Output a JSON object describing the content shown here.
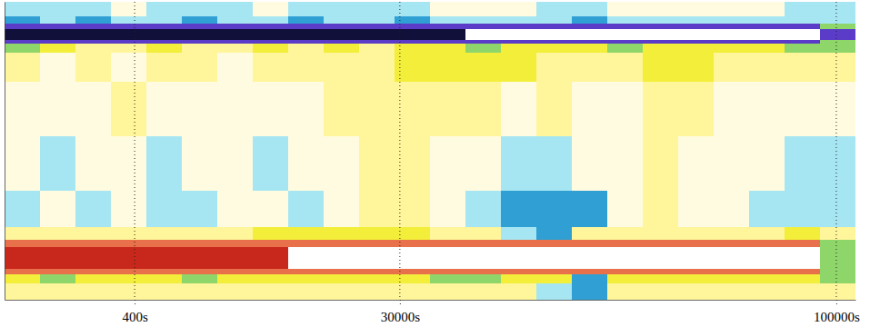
{
  "chart_data": {
    "type": "heatmap",
    "x_bins": [
      0,
      1,
      2,
      3,
      4,
      5,
      6,
      7,
      8,
      9,
      10,
      11,
      12,
      13,
      14,
      15,
      16,
      17,
      18,
      19,
      20,
      21,
      22,
      23,
      24
    ],
    "y_bins": [
      0,
      2.25,
      3.5,
      4.25,
      7.25,
      8.25,
      10,
      15,
      22.5,
      30,
      34,
      35.25,
      35.75,
      37.25,
      38,
      39,
      41
    ],
    "xlim": [
      0,
      24
    ],
    "ylim": [
      0,
      41
    ],
    "xticks": [
      {
        "value": 3.67,
        "label": "400s"
      },
      {
        "value": 11.15,
        "label": "30000s"
      },
      {
        "value": 23.46,
        "label": "100000s"
      }
    ],
    "tick_labels": "x",
    "grid": true,
    "cells": [
      [
        3,
        3,
        3,
        3,
        3,
        3,
        3,
        3,
        3,
        3,
        3,
        3,
        3,
        3,
        3,
        1,
        0,
        3,
        3,
        3,
        3,
        3,
        3,
        3
      ],
      [
        4,
        5,
        4,
        4,
        4,
        5,
        4,
        4,
        4,
        4,
        4,
        4,
        5,
        5,
        4,
        4,
        0,
        4,
        4,
        4,
        4,
        4,
        4,
        5
      ],
      [
        8,
        8,
        8,
        8,
        8,
        8,
        8,
        8,
        8,
        8,
        8,
        8,
        8,
        8,
        8,
        8,
        8,
        8,
        8,
        8,
        8,
        8,
        8,
        5
      ],
      [
        9,
        9,
        9,
        9,
        9,
        9,
        9,
        9,
        10,
        10,
        10,
        10,
        10,
        10,
        10,
        10,
        10,
        10,
        10,
        10,
        10,
        10,
        10,
        5
      ],
      [
        8,
        8,
        8,
        8,
        8,
        8,
        8,
        8,
        8,
        8,
        8,
        8,
        8,
        8,
        8,
        8,
        8,
        8,
        8,
        8,
        8,
        8,
        8,
        5
      ],
      [
        3,
        3,
        3,
        3,
        3,
        3,
        3,
        4,
        4,
        4,
        4,
        4,
        3,
        3,
        1,
        0,
        3,
        3,
        3,
        3,
        3,
        3,
        4,
        3
      ],
      [
        1,
        2,
        1,
        2,
        1,
        1,
        2,
        2,
        1,
        2,
        3,
        3,
        2,
        1,
        0,
        0,
        0,
        2,
        3,
        2,
        2,
        1,
        1,
        1
      ],
      [
        2,
        1,
        2,
        2,
        1,
        2,
        2,
        1,
        2,
        2,
        3,
        3,
        2,
        2,
        1,
        1,
        2,
        2,
        3,
        2,
        2,
        2,
        1,
        1
      ],
      [
        2,
        2,
        2,
        3,
        2,
        2,
        2,
        2,
        2,
        3,
        3,
        3,
        3,
        3,
        2,
        3,
        2,
        2,
        3,
        3,
        2,
        2,
        2,
        2
      ],
      [
        3,
        2,
        3,
        2,
        3,
        3,
        2,
        3,
        3,
        3,
        3,
        4,
        4,
        4,
        4,
        3,
        3,
        3,
        4,
        4,
        3,
        3,
        3,
        3
      ],
      [
        5,
        4,
        3,
        3,
        4,
        3,
        3,
        4,
        3,
        4,
        3,
        4,
        4,
        5,
        4,
        4,
        4,
        5,
        4,
        4,
        4,
        4,
        5,
        5
      ],
      [
        6,
        6,
        6,
        6,
        6,
        6,
        6,
        6,
        6,
        6,
        6,
        6,
        6,
        6,
        6,
        6,
        6,
        6,
        6,
        6,
        6,
        6,
        6,
        5
      ],
      [
        7,
        7,
        7,
        7,
        7,
        7,
        7,
        7,
        7,
        7,
        7,
        7,
        7,
        10,
        10,
        10,
        10,
        10,
        10,
        10,
        10,
        10,
        10,
        6
      ],
      [
        6,
        6,
        6,
        6,
        6,
        6,
        6,
        6,
        6,
        6,
        6,
        6,
        6,
        6,
        6,
        6,
        6,
        6,
        6,
        6,
        6,
        6,
        6,
        5
      ],
      [
        0,
        1,
        0,
        1,
        1,
        0,
        1,
        1,
        0,
        1,
        1,
        0,
        1,
        1,
        1,
        1,
        0,
        1,
        1,
        1,
        1,
        1,
        1,
        1
      ],
      [
        1,
        1,
        1,
        2,
        1,
        1,
        1,
        2,
        1,
        1,
        1,
        1,
        2,
        2,
        2,
        1,
        1,
        2,
        2,
        2,
        2,
        2,
        1,
        1
      ]
    ],
    "colorbar": {
      "range": [
        0,
        10
      ],
      "colors": [
        "#2f9fd4",
        "#a6e6f2",
        "#fffbe0",
        "#fff59a",
        "#f2ee3a",
        "#8fd66a",
        "#5a3cc8",
        "#10103a",
        "#e8704a",
        "#c8281c",
        "#ffffff"
      ]
    }
  }
}
